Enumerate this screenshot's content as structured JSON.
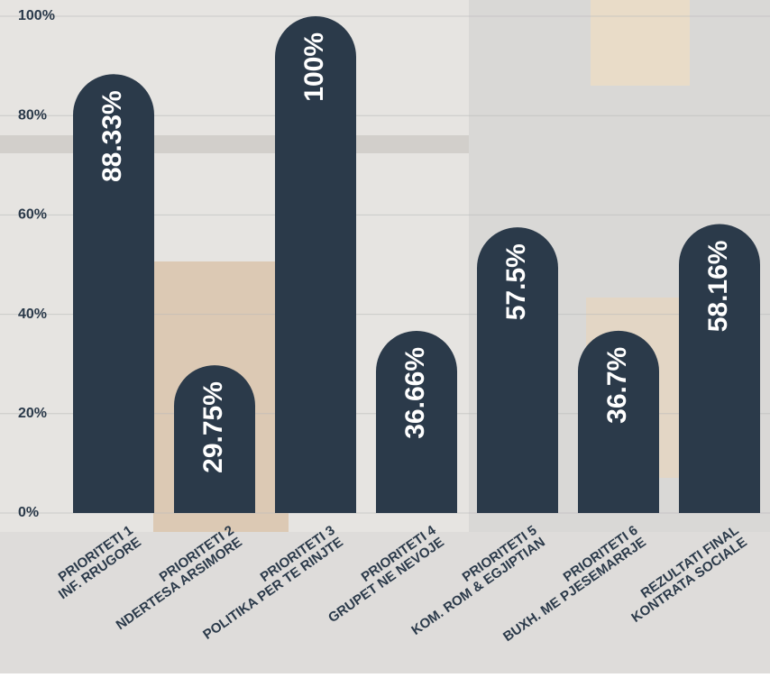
{
  "chart_data": {
    "type": "bar",
    "categories": [
      [
        "PRIORITETI 1",
        "INF. RRUGORE"
      ],
      [
        "PRIORITETI 2",
        "NDERTESA ARSIMORE"
      ],
      [
        "PRIORITETI 3",
        "POLITIKA PER TE RINJTE"
      ],
      [
        "PRIORITETI 4",
        "GRUPET NE NEVOJE"
      ],
      [
        "PRIORITETI 5",
        "KOM. ROM & EGJIPTIAN"
      ],
      [
        "PRIORITETI 6",
        "BUXH. ME PJESEMARRJE"
      ],
      [
        "REZULTATI FINAL",
        "KONTRATA SOCIALE"
      ]
    ],
    "values": [
      88.33,
      29.75,
      100,
      36.66,
      57.5,
      36.7,
      58.16
    ],
    "value_labels": [
      "88.33%",
      "29.75%",
      "100%",
      "36.66%",
      "57.5%",
      "36.7%",
      "58.16%"
    ],
    "color": "#2b3a4a",
    "ylim": [
      0,
      100
    ],
    "yticks": [
      {
        "value": 0,
        "label": "0%"
      },
      {
        "value": 20,
        "label": "20%"
      },
      {
        "value": 40,
        "label": "40%"
      },
      {
        "value": 60,
        "label": "60%"
      },
      {
        "value": 80,
        "label": "80%"
      },
      {
        "value": 100,
        "label": "100%"
      }
    ],
    "grid": true
  }
}
